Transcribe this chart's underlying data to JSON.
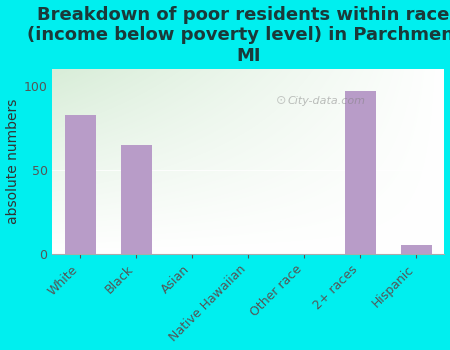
{
  "title": "Breakdown of poor residents within races\n(income below poverty level) in Parchment,\nMI",
  "ylabel": "absolute numbers",
  "categories": [
    "White",
    "Black",
    "Asian",
    "Native Hawaiian",
    "Other race",
    "2+ races",
    "Hispanic"
  ],
  "values": [
    83,
    65,
    0,
    0,
    0,
    97,
    5
  ],
  "bar_color": "#b89cc8",
  "bar_width": 0.55,
  "ylim": [
    0,
    110
  ],
  "yticks": [
    0,
    50,
    100
  ],
  "background_color": "#00efef",
  "plot_bg_top_left": "#d8edd8",
  "plot_bg_bottom_right": "#ffffff",
  "title_fontsize": 13,
  "ylabel_fontsize": 10,
  "tick_fontsize": 9,
  "watermark": "City-data.com"
}
